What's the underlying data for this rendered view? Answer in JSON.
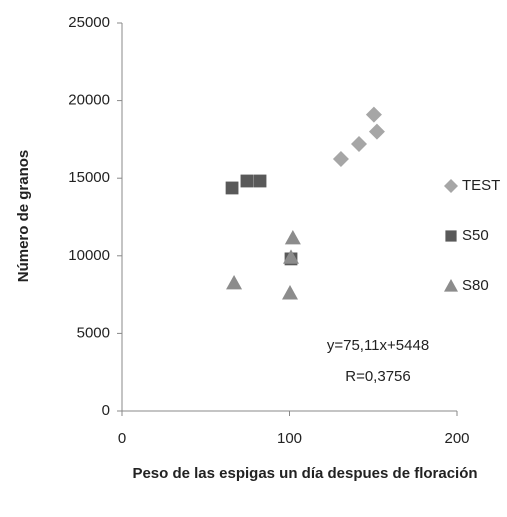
{
  "chart_data": {
    "type": "scatter",
    "xlabel": "Peso de las espigas un día despues de floración",
    "ylabel": "Número de granos",
    "xlim": [
      0,
      200
    ],
    "xticks": [
      0,
      100,
      200
    ],
    "ylim": [
      0,
      25000
    ],
    "yticks": [
      0,
      5000,
      10000,
      15000,
      20000,
      25000
    ],
    "grid": false,
    "legend": "right",
    "annotations": [
      "y=75,11x+5448",
      "R=0,3756"
    ],
    "series": [
      {
        "name": "TEST",
        "color": "#a6a6a6",
        "marker": "diamond",
        "x": [
          130.7,
          141.5,
          150.4,
          152.2
        ],
        "values": [
          16240,
          17200,
          19100,
          18000
        ]
      },
      {
        "name": "S50",
        "color": "#595959",
        "marker": "square",
        "x": [
          65.7,
          74.6,
          82.4,
          100.9
        ],
        "values": [
          14370,
          14820,
          14820,
          9800
        ]
      },
      {
        "name": "S80",
        "color": "#8c8c8c",
        "marker": "triangle",
        "x": [
          66.9,
          100.3,
          102,
          100.9
        ],
        "values": [
          8250,
          7600,
          11150,
          9900
        ]
      }
    ]
  }
}
